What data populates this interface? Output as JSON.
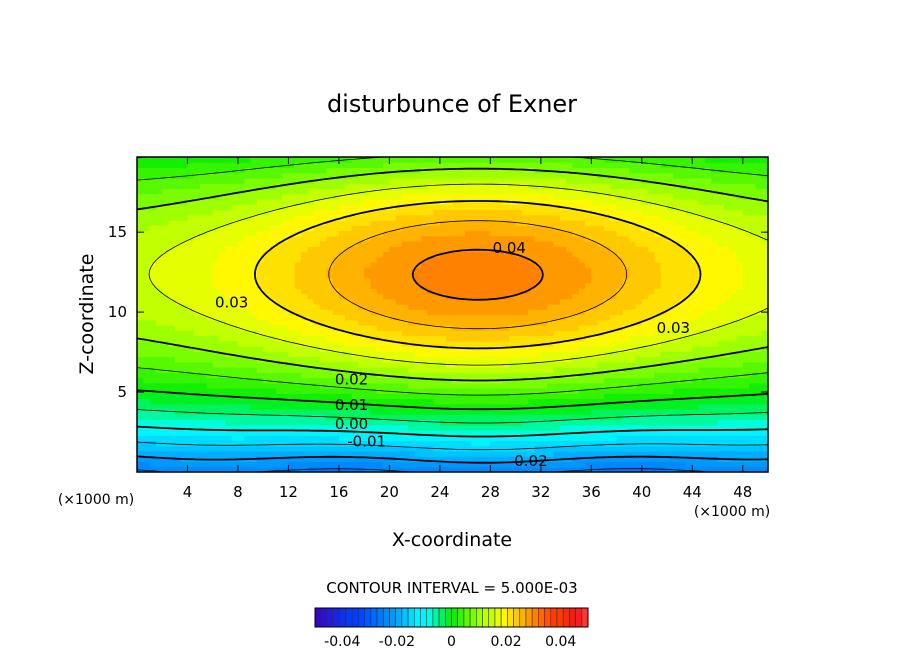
{
  "chart_data": {
    "type": "heatmap",
    "title": "disturbunce of Exner",
    "xlabel": "X-coordinate",
    "ylabel": "Z-coordinate",
    "x_unit_label": "(×1000 m)",
    "z_unit_label": "(×1000 m)",
    "xlim": [
      0,
      50
    ],
    "ylim": [
      0,
      19.7
    ],
    "x_ticks": [
      4,
      8,
      12,
      16,
      20,
      24,
      28,
      32,
      36,
      40,
      44,
      48
    ],
    "y_ticks": [
      5,
      10,
      15
    ],
    "contour_interval_text": "CONTOUR INTERVAL = 5.000E-03",
    "contour_labels": [
      {
        "text": "0.04",
        "x": 29.5,
        "z": 14.0
      },
      {
        "text": "0.03",
        "x": 7.5,
        "z": 10.6
      },
      {
        "text": "0.03",
        "x": 42.5,
        "z": 9.0
      },
      {
        "text": "0.02",
        "x": 17.0,
        "z": 5.8
      },
      {
        "text": "0.01",
        "x": 17.0,
        "z": 4.2
      },
      {
        "text": "0.00",
        "x": 17.0,
        "z": 3.0
      },
      {
        "text": "-0.01",
        "x": 18.2,
        "z": 1.9
      },
      {
        "text": "-0.02",
        "x": 31.0,
        "z": 0.7
      }
    ],
    "colorbar": {
      "min": -0.05,
      "max": 0.05,
      "tick_values": [
        -0.04,
        -0.02,
        0,
        0.02,
        0.04
      ],
      "tick_labels": [
        "-0.04",
        "-0.02",
        "0",
        "0.02",
        "0.04"
      ]
    },
    "colors": {
      "max": "#ff1010",
      "high": "#ff7a00",
      "mid": "#ffff00",
      "zero": "#00ee00",
      "low": "#00ffff",
      "min": "#0040ff"
    }
  }
}
